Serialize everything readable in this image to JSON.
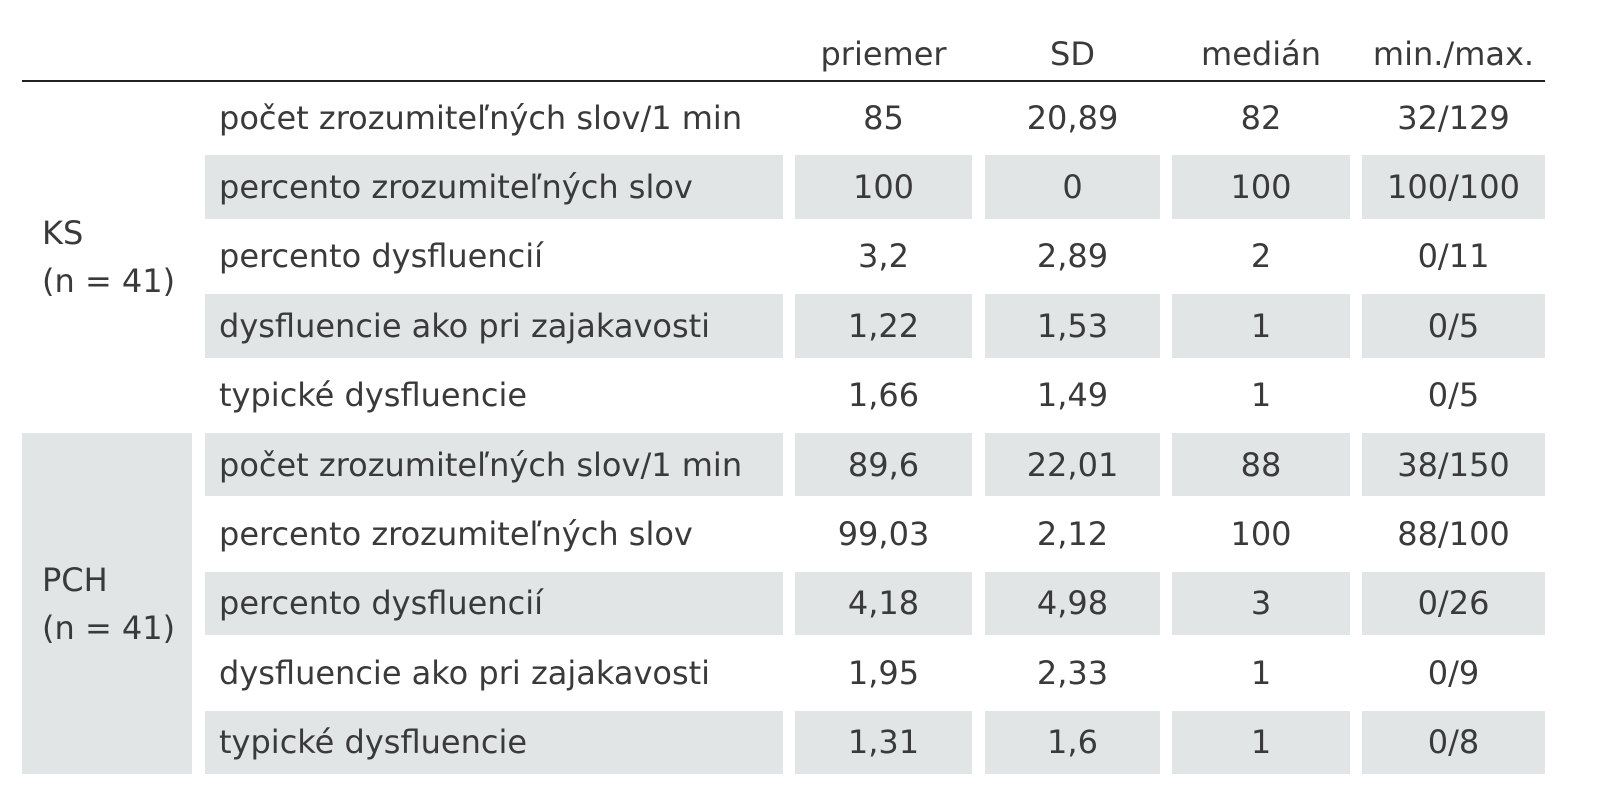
{
  "table": {
    "columns": [
      "priemer",
      "SD",
      "medián",
      "min./max."
    ],
    "groups": [
      {
        "label": [
          "KS",
          "(n = 41)"
        ],
        "shaded": false,
        "rows": [
          {
            "label": "počet zrozumiteľných slov/1 min",
            "values": [
              "85",
              "20,89",
              "82",
              "32/129"
            ]
          },
          {
            "label": "percento zrozumiteľných slov",
            "values": [
              "100",
              "0",
              "100",
              "100/100"
            ]
          },
          {
            "label": "percento dysfluencií",
            "values": [
              "3,2",
              "2,89",
              "2",
              "0/11"
            ]
          },
          {
            "label": "dysfluencie ako pri zajakavosti",
            "values": [
              "1,22",
              "1,53",
              "1",
              "0/5"
            ]
          },
          {
            "label": "typické dysfluencie",
            "values": [
              "1,66",
              "1,49",
              "1",
              "0/5"
            ]
          }
        ]
      },
      {
        "label": [
          "PCH",
          "(n = 41)"
        ],
        "shaded": true,
        "rows": [
          {
            "label": "počet zrozumiteľných slov/1 min",
            "values": [
              "89,6",
              "22,01",
              "88",
              "38/150"
            ]
          },
          {
            "label": "percento zrozumiteľných slov",
            "values": [
              "99,03",
              "2,12",
              "100",
              "88/100"
            ]
          },
          {
            "label": "percento dysfluencií",
            "values": [
              "4,18",
              "4,98",
              "3",
              "0/26"
            ]
          },
          {
            "label": "dysfluencie ako pri zajakavosti",
            "values": [
              "1,95",
              "2,33",
              "1",
              "0/9"
            ]
          },
          {
            "label": "typické dysfluencie",
            "values": [
              "1,31",
              "1,6",
              "1",
              "0/8"
            ]
          }
        ]
      }
    ]
  }
}
